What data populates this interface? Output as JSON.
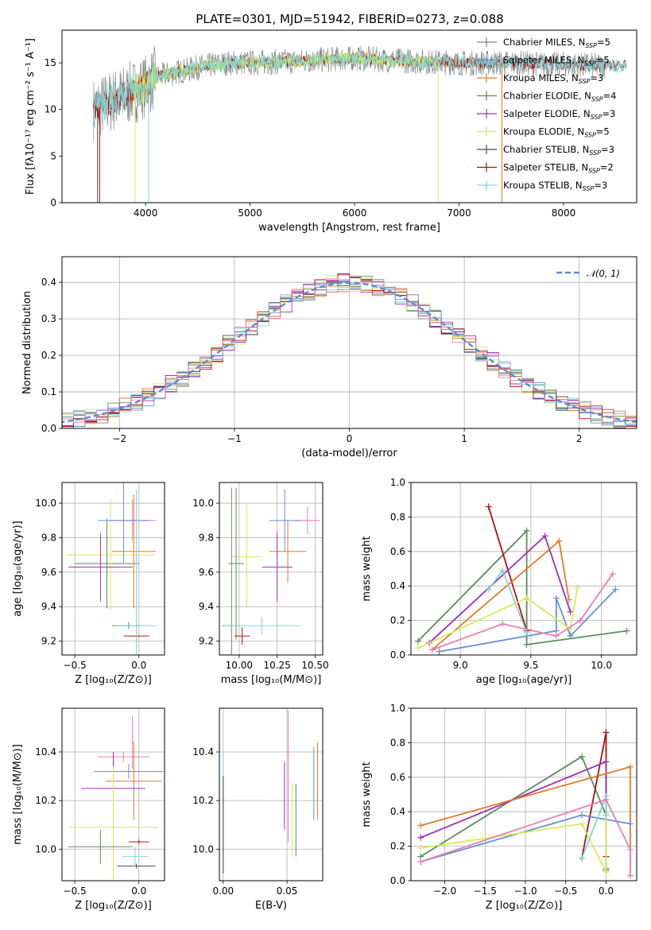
{
  "colors": {
    "Chabrier MILES": "#7f7f7f",
    "Salpeter MILES": "#6a8fd6",
    "Kroupa MILES": "#e07b28",
    "Chabrier ELODIE": "#5a8a5e",
    "Salpeter ELODIE": "#9b30b8",
    "Kroupa ELODIE": "#d6ec5a",
    "Chabrier STELIB": "#4a4a4a",
    "Salpeter STELIB": "#b01010",
    "Kroupa STELIB": "#7fd6dc",
    "gauss": "#5b8bd6",
    "pink": "#e57fb0"
  },
  "chart_data": [
    {
      "type": "line",
      "id": "spectrum",
      "title": "PLATE=0301, MJD=51942, FIBERID=0273, z=0.088",
      "xlabel": "wavelength [Angstrom, rest frame]",
      "ylabel": "Flux [fλ10⁻¹⁷ erg cm⁻² s⁻¹ A⁻¹]",
      "xlim": [
        3200,
        8700
      ],
      "ylim": [
        0,
        18.5
      ],
      "xticks": [
        4000,
        5000,
        6000,
        7000,
        8000
      ],
      "yticks": [
        0,
        5,
        10,
        15
      ],
      "continuum_x": [
        3500,
        3600,
        3700,
        3800,
        3900,
        4000,
        4100,
        4300,
        4500,
        4800,
        5000,
        5500,
        6000,
        6500,
        7000,
        7500,
        8000,
        8400
      ],
      "continuum_y": [
        10.0,
        10.5,
        11.0,
        11.5,
        12.0,
        12.5,
        13.5,
        14.0,
        14.5,
        15.0,
        15.0,
        15.2,
        15.5,
        15.2,
        15.0,
        15.0,
        14.8,
        14.7
      ],
      "legend": [
        {
          "label": "Chabrier MILES, N",
          "sub": "SSP",
          "n": "=5"
        },
        {
          "label": "Salpeter MILES, N",
          "sub": "SSP",
          "n": "=5"
        },
        {
          "label": "Kroupa MILES, N",
          "sub": "SSP",
          "n": "=3"
        },
        {
          "label": "Chabrier ELODIE, N",
          "sub": "SSP",
          "n": "=4"
        },
        {
          "label": "Salpeter ELODIE, N",
          "sub": "SSP",
          "n": "=3"
        },
        {
          "label": "Kroupa ELODIE, N",
          "sub": "SSP",
          "n": "=5"
        },
        {
          "label": "Chabrier STELIB, N",
          "sub": "SSP",
          "n": "=3"
        },
        {
          "label": "Salpeter STELIB, N",
          "sub": "SSP",
          "n": "=2"
        },
        {
          "label": "Kroupa STELIB, N",
          "sub": "SSP",
          "n": "=3"
        }
      ],
      "legend_placement": "right"
    },
    {
      "type": "histogram",
      "id": "residuals",
      "xlabel": "(data-model)/error",
      "ylabel": "Normed distribution",
      "xlim": [
        -2.5,
        2.5
      ],
      "ylim": [
        0,
        0.47
      ],
      "xticks": [
        -2,
        -1,
        0,
        1,
        2
      ],
      "xticklabels": [
        "−2",
        "−1",
        "0",
        "1",
        "2"
      ],
      "yticks": [
        0.0,
        0.1,
        0.2,
        0.3,
        0.4
      ],
      "bin_width": 0.1,
      "gauss_label": "𝒩(0, 1)",
      "grid": true,
      "legend_placement": "top-right"
    },
    {
      "type": "scatter",
      "id": "age-vs-Z",
      "xlabel": "Z [log₁₀(Z/Z⊙)]",
      "ylabel": "age  [log₁₀(age/yr)]",
      "xlim": [
        -0.6,
        0.2
      ],
      "ylim": [
        9.12,
        10.12
      ],
      "xticks": [
        -0.5,
        0.0
      ],
      "xticklabels": [
        "−0.5",
        "0.0"
      ],
      "yticks": [
        9.2,
        9.4,
        9.6,
        9.8,
        10.0
      ],
      "grid": true,
      "points": [
        {
          "x": -0.05,
          "y": 9.9,
          "xerr": 0.18,
          "yerr": 0.12,
          "c": "pink"
        },
        {
          "x": -0.25,
          "y": 9.65,
          "xerr": 0.25,
          "yerr": 0.26,
          "c": "Chabrier ELODIE"
        },
        {
          "x": -0.04,
          "y": 9.72,
          "xerr": 0.17,
          "yerr": 0.33,
          "c": "Kroupa MILES"
        },
        {
          "x": -0.22,
          "y": 9.7,
          "xerr": 0.35,
          "yerr": 0.32,
          "c": "Kroupa ELODIE"
        },
        {
          "x": -0.3,
          "y": 9.63,
          "xerr": 0.25,
          "yerr": 0.2,
          "c": "Salpeter ELODIE"
        },
        {
          "x": -0.12,
          "y": 9.9,
          "xerr": 0.2,
          "yerr": 0.25,
          "c": "Salpeter MILES"
        },
        {
          "x": -0.08,
          "y": 9.29,
          "xerr": 0.13,
          "yerr": 0.02,
          "c": "Chabrier MILES"
        },
        {
          "x": -0.02,
          "y": 9.23,
          "xerr": 0.1,
          "yerr": 0.06,
          "c": "Salpeter STELIB"
        },
        {
          "x": -0.02,
          "y": 9.29,
          "xerr": 0.15,
          "yerr": 0.79,
          "c": "Kroupa STELIB"
        }
      ]
    },
    {
      "type": "scatter",
      "id": "age-vs-mass",
      "xlabel": "mass [log₁₀(M/M⊙)]",
      "ylabel": "",
      "xlim": [
        9.87,
        10.55
      ],
      "ylim": [
        9.12,
        10.12
      ],
      "xticks": [
        10.0,
        10.25,
        10.5
      ],
      "xticklabels": [
        "10.00",
        "10.25",
        "10.50"
      ],
      "yticks": [
        9.2,
        9.4,
        9.6,
        9.8,
        10.0
      ],
      "grid": true,
      "points": [
        {
          "x": 10.45,
          "y": 9.9,
          "xerr": 0.08,
          "yerr": 0.08,
          "c": "pink"
        },
        {
          "x": 10.32,
          "y": 9.72,
          "xerr": 0.12,
          "yerr": 0.18,
          "c": "Kroupa MILES"
        },
        {
          "x": 10.3,
          "y": 9.9,
          "xerr": 0.1,
          "yerr": 0.18,
          "c": "Salpeter MILES"
        },
        {
          "x": 10.25,
          "y": 9.63,
          "xerr": 0.1,
          "yerr": 0.2,
          "c": "Salpeter ELODIE"
        },
        {
          "x": 10.05,
          "y": 9.69,
          "xerr": 0.1,
          "yerr": 0.3,
          "c": "Kroupa ELODIE"
        },
        {
          "x": 9.98,
          "y": 9.65,
          "xerr": 0.05,
          "yerr": 0.44,
          "c": "Chabrier ELODIE"
        },
        {
          "x": 9.95,
          "y": 9.29,
          "xerr": 0.06,
          "yerr": 0.8,
          "c": "Chabrier MILES"
        },
        {
          "x": 10.02,
          "y": 9.23,
          "xerr": 0.05,
          "yerr": 0.05,
          "c": "Salpeter STELIB"
        },
        {
          "x": 10.15,
          "y": 9.29,
          "xerr": 0.25,
          "yerr": 0.05,
          "c": "Kroupa STELIB"
        }
      ]
    },
    {
      "type": "line",
      "id": "massweight-vs-age",
      "xlabel": "age  [log₁₀(age/yr)]",
      "ylabel": "mass weight",
      "xlim": [
        8.65,
        10.25
      ],
      "ylim": [
        0.0,
        1.0
      ],
      "xticks": [
        9.0,
        9.5,
        10.0
      ],
      "xticklabels": [
        "9.0",
        "9.5",
        "10.0"
      ],
      "yticks": [
        0.0,
        0.2,
        0.4,
        0.6,
        0.8,
        1.0
      ],
      "grid": true,
      "series": [
        {
          "c": "Chabrier ELODIE",
          "x": [
            8.7,
            9.47,
            9.47,
            10.18
          ],
          "y": [
            0.08,
            0.72,
            0.06,
            0.14
          ]
        },
        {
          "c": "Salpeter STELIB",
          "x": [
            9.2,
            9.47
          ],
          "y": [
            0.86,
            0.14
          ]
        },
        {
          "c": "Salpeter ELODIE",
          "x": [
            8.78,
            9.6,
            9.78
          ],
          "y": [
            0.07,
            0.69,
            0.25
          ]
        },
        {
          "c": "Kroupa MILES",
          "x": [
            8.8,
            9.7,
            9.77
          ],
          "y": [
            0.03,
            0.66,
            0.32
          ]
        },
        {
          "c": "Salpeter MILES",
          "x": [
            8.85,
            9.68,
            9.68,
            9.78,
            10.1
          ],
          "y": [
            0.02,
            0.14,
            0.33,
            0.11,
            0.38
          ]
        },
        {
          "c": "Kroupa ELODIE",
          "x": [
            8.7,
            9.47,
            9.78,
            9.83
          ],
          "y": [
            0.04,
            0.33,
            0.15,
            0.39
          ]
        },
        {
          "c": "Kroupa STELIB",
          "x": [
            9.2,
            9.3,
            9.47
          ],
          "y": [
            0.38,
            0.49,
            0.13
          ]
        },
        {
          "c": "pink",
          "x": [
            8.8,
            9.3,
            9.68,
            9.85,
            10.08
          ],
          "y": [
            0.03,
            0.18,
            0.11,
            0.2,
            0.47
          ]
        }
      ]
    },
    {
      "type": "scatter",
      "id": "mass-vs-Z",
      "xlabel": "Z [log₁₀(Z/Z⊙)]",
      "ylabel": "mass [log₁₀(M/M⊙)]",
      "xlim": [
        -0.6,
        0.2
      ],
      "ylim": [
        9.87,
        10.58
      ],
      "xticks": [
        -0.5,
        0.0
      ],
      "xticklabels": [
        "−0.5",
        "0.0"
      ],
      "yticks": [
        10.0,
        10.2,
        10.4
      ],
      "grid": true,
      "points": [
        {
          "x": -0.05,
          "y": 10.44,
          "xerr": 0.01,
          "yerr": 0.11,
          "c": "pink"
        },
        {
          "x": -0.12,
          "y": 10.38,
          "xerr": 0.2,
          "yerr": 0.02,
          "c": "pink"
        },
        {
          "x": -0.08,
          "y": 10.32,
          "xerr": 0.27,
          "yerr": 0.03,
          "c": "Salpeter MILES"
        },
        {
          "x": -0.04,
          "y": 10.28,
          "xerr": 0.22,
          "yerr": 0.16,
          "c": "Kroupa MILES"
        },
        {
          "x": -0.2,
          "y": 10.25,
          "xerr": 0.25,
          "yerr": 0.15,
          "c": "Salpeter ELODIE"
        },
        {
          "x": -0.2,
          "y": 10.09,
          "xerr": 0.35,
          "yerr": 0.25,
          "c": "Kroupa ELODIE"
        },
        {
          "x": -0.3,
          "y": 10.01,
          "xerr": 0.25,
          "yerr": 0.07,
          "c": "Chabrier ELODIE"
        },
        {
          "x": 0.0,
          "y": 10.03,
          "xerr": 0.08,
          "yerr": 0.01,
          "c": "Salpeter STELIB"
        },
        {
          "x": -0.02,
          "y": 9.93,
          "xerr": 0.15,
          "yerr": 0.01,
          "c": "Chabrier STELIB"
        },
        {
          "x": -0.03,
          "y": 9.97,
          "xerr": 0.1,
          "yerr": 0.04,
          "c": "Kroupa STELIB"
        }
      ]
    },
    {
      "type": "scatter",
      "id": "mass-vs-EBV",
      "xlabel": "E(B-V)",
      "ylabel": "",
      "xlim": [
        -0.003,
        0.078
      ],
      "ylim": [
        9.87,
        10.58
      ],
      "xticks": [
        0.0,
        0.05
      ],
      "xticklabels": [
        "0.00",
        "0.05"
      ],
      "yticks": [
        10.0,
        10.2,
        10.4
      ],
      "grid": true,
      "points": [
        {
          "x": 0.0,
          "y": 10.15,
          "xerr": 0,
          "yerr": 0.25,
          "c": "Kroupa STELIB"
        },
        {
          "x": 0.0,
          "y": 10.1,
          "xerr": 0,
          "yerr": 0.2,
          "c": "Chabrier STELIB"
        },
        {
          "x": 0.048,
          "y": 10.22,
          "xerr": 0,
          "yerr": 0.14,
          "c": "Salpeter ELODIE"
        },
        {
          "x": 0.051,
          "y": 10.3,
          "xerr": 0,
          "yerr": 0.27,
          "c": "pink"
        },
        {
          "x": 0.054,
          "y": 10.12,
          "xerr": 0,
          "yerr": 0.15,
          "c": "Kroupa ELODIE"
        },
        {
          "x": 0.057,
          "y": 10.12,
          "xerr": 0,
          "yerr": 0.15,
          "c": "Chabrier ELODIE"
        },
        {
          "x": 0.071,
          "y": 10.27,
          "xerr": 0,
          "yerr": 0.15,
          "c": "Salpeter MILES"
        },
        {
          "x": 0.074,
          "y": 10.28,
          "xerr": 0,
          "yerr": 0.16,
          "c": "Kroupa MILES"
        }
      ]
    },
    {
      "type": "line",
      "id": "massweight-vs-Z",
      "xlabel": "Z [log₁₀(Z/Z⊙)]",
      "ylabel": "mass weight",
      "xlim": [
        -2.42,
        0.38
      ],
      "ylim": [
        0.0,
        1.0
      ],
      "xticks": [
        -2.0,
        -1.5,
        -1.0,
        -0.5,
        0.0
      ],
      "xticklabels": [
        "−2.0",
        "−1.5",
        "−1.0",
        "−0.5",
        "0.0"
      ],
      "yticks": [
        0.0,
        0.2,
        0.4,
        0.6,
        0.8,
        1.0
      ],
      "grid": true,
      "series": [
        {
          "c": "Chabrier ELODIE",
          "x": [
            -2.3,
            -0.3,
            0.0,
            0.0
          ],
          "y": [
            0.14,
            0.72,
            0.38,
            0.06
          ]
        },
        {
          "c": "Salpeter STELIB",
          "x": [
            -0.3,
            0.0,
            0.0
          ],
          "y": [
            0.13,
            0.86,
            0.14
          ]
        },
        {
          "c": "Salpeter ELODIE",
          "x": [
            -2.3,
            0.0,
            0.0
          ],
          "y": [
            0.25,
            0.69,
            0.07
          ]
        },
        {
          "c": "Kroupa MILES",
          "x": [
            -2.3,
            0.3,
            0.3
          ],
          "y": [
            0.32,
            0.66,
            0.03
          ]
        },
        {
          "c": "Salpeter MILES",
          "x": [
            -2.3,
            -0.3,
            0.3
          ],
          "y": [
            0.11,
            0.38,
            0.33
          ]
        },
        {
          "c": "Kroupa ELODIE",
          "x": [
            -2.3,
            -0.3,
            0.0,
            0.0
          ],
          "y": [
            0.19,
            0.33,
            0.05,
            0.39
          ]
        },
        {
          "c": "Kroupa STELIB",
          "x": [
            -0.3,
            0.0,
            0.0
          ],
          "y": [
            0.13,
            0.49,
            0.38
          ]
        },
        {
          "c": "pink",
          "x": [
            -2.3,
            0.0,
            0.3,
            0.3
          ],
          "y": [
            0.11,
            0.47,
            0.18,
            0.03
          ]
        }
      ]
    }
  ]
}
